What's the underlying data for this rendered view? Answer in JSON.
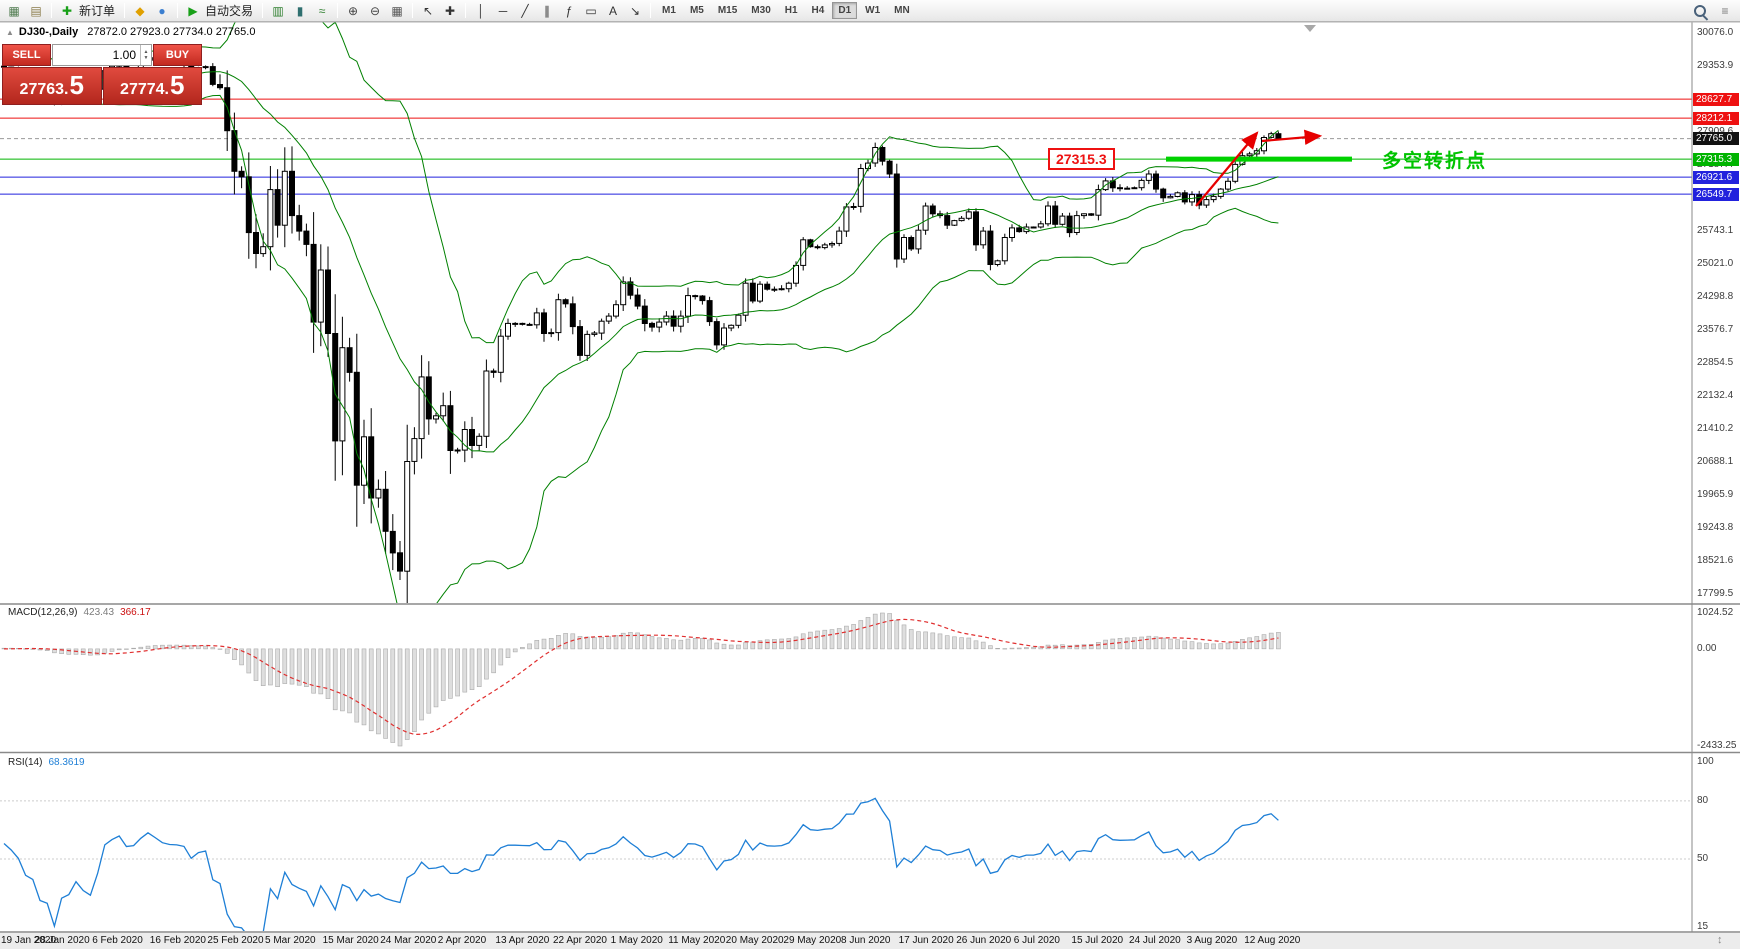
{
  "icons": {
    "collapse": "▲",
    "spin_up": "▲",
    "spin_down": "▼",
    "corner": "↕"
  },
  "toolbar": {
    "groups": [
      [
        {
          "name": "new-chart-icon",
          "glyph": "▦",
          "color": "#4f7b4f"
        },
        {
          "name": "profiles-icon",
          "glyph": "▤",
          "color": "#8a7b4a"
        }
      ],
      [
        {
          "name": "new-order-icon",
          "glyph": "✚",
          "color": "#18a018"
        },
        {
          "name": "new-order-label",
          "label": "新订单"
        }
      ],
      [
        {
          "name": "market-watch-icon",
          "glyph": "◆",
          "color": "#e0a000"
        },
        {
          "name": "data-window-icon",
          "glyph": "●",
          "color": "#3b7fd0"
        }
      ],
      [
        {
          "name": "autotrading-icon",
          "glyph": "▶",
          "color": "#18a018"
        },
        {
          "name": "autotrading-label",
          "label": "自动交易"
        }
      ],
      [
        {
          "name": "bar-chart-icon",
          "glyph": "▥",
          "color": "#2f7f2f"
        },
        {
          "name": "candlestick-chart-icon",
          "glyph": "▮",
          "color": "#2f6f6f"
        },
        {
          "name": "line-chart-icon",
          "glyph": "≈",
          "color": "#2f7f2f"
        }
      ],
      [
        {
          "name": "zoom-in-icon",
          "glyph": "⊕",
          "color": "#444444"
        },
        {
          "name": "zoom-out-icon",
          "glyph": "⊖",
          "color": "#444444"
        },
        {
          "name": "tile-windows-icon",
          "glyph": "▦",
          "color": "#555555"
        }
      ],
      [
        {
          "name": "cursor-icon",
          "glyph": "↖",
          "color": "#333333"
        },
        {
          "name": "crosshair-icon",
          "glyph": "✚",
          "color": "#333333"
        }
      ],
      [
        {
          "name": "vertical-line-icon",
          "glyph": "│",
          "color": "#333333"
        },
        {
          "name": "horizontal-line-icon",
          "glyph": "─",
          "color": "#333333"
        },
        {
          "name": "trendline-icon",
          "glyph": "╱",
          "color": "#333333"
        },
        {
          "name": "channel-icon",
          "glyph": "∥",
          "color": "#333333"
        },
        {
          "name": "fibonacci-icon",
          "glyph": "ƒ",
          "color": "#333333"
        },
        {
          "name": "shapes-icon",
          "glyph": "▭",
          "color": "#333333"
        },
        {
          "name": "text-icon",
          "glyph": "A",
          "color": "#333333"
        },
        {
          "name": "arrow-tool-icon",
          "glyph": "↘",
          "color": "#333333"
        }
      ]
    ],
    "timeframes": [
      "M1",
      "M5",
      "M15",
      "M30",
      "H1",
      "H4",
      "D1",
      "W1",
      "MN"
    ],
    "active_timeframe": "D1"
  },
  "title": {
    "symbol": "DJ30-,Daily",
    "ohlc": "27872.0 27923.0 27734.0 27765.0"
  },
  "trade_panel": {
    "sell_label": "SELL",
    "buy_label": "BUY",
    "volume": "1.00",
    "sell_price_main": "27763.",
    "sell_price_big": "5",
    "buy_price_main": "27774.",
    "buy_price_big": "5"
  },
  "annotations": {
    "level_label": "27315.3",
    "turning_text": "多空转折点",
    "thick_line_color": "#00d200",
    "arrow_color": "#e60000"
  },
  "macd": {
    "name": "MACD(12,26,9)",
    "value_main": "423.43",
    "value_signal": "366.17",
    "axis_max": "1024.52",
    "axis_zero": "0.00",
    "axis_min": "-2433.25"
  },
  "rsi": {
    "name": "RSI(14)",
    "value": "68.3619",
    "axis_ticks": [
      "100",
      "80",
      "50",
      "15"
    ]
  },
  "date_axis": [
    "19 Jan 2020",
    "28 Jan 2020",
    "6 Feb 2020",
    "16 Feb 2020",
    "25 Feb 2020",
    "5 Mar 2020",
    "15 Mar 2020",
    "24 Mar 2020",
    "2 Apr 2020",
    "13 Apr 2020",
    "22 Apr 2020",
    "1 May 2020",
    "11 May 2020",
    "20 May 2020",
    "29 May 2020",
    "8 Jun 2020",
    "17 Jun 2020",
    "26 Jun 2020",
    "6 Jul 2020",
    "15 Jul 2020",
    "24 Jul 2020",
    "3 Aug 2020",
    "12 Aug 2020"
  ],
  "chart_data": {
    "type": "candlestick",
    "symbol": "DJ30-",
    "timeframe": "Daily",
    "last_ohlc": {
      "open": 27872.0,
      "high": 27923.0,
      "low": 27734.0,
      "close": 27765.0
    },
    "first_open": 29350,
    "closes": [
      29330,
      29305,
      29270,
      29185,
      29160,
      28990,
      28960,
      28535,
      28722,
      28750,
      28855,
      28720,
      28640,
      28845,
      29250,
      29350,
      29420,
      29285,
      29300,
      29430,
      29535,
      29480,
      29420,
      29400,
      29395,
      29380,
      29250,
      29320,
      29340,
      28950,
      28880,
      27940,
      27050,
      26930,
      25710,
      25250,
      25400,
      26650,
      25870,
      27050,
      26080,
      25740,
      25450,
      23750,
      24890,
      23500,
      21150,
      23190,
      22650,
      20180,
      21240,
      19900,
      20090,
      19170,
      18700,
      18300,
      20700,
      21200,
      22550,
      21630,
      21700,
      21920,
      20940,
      20950,
      21400,
      21050,
      21250,
      22680,
      22650,
      23440,
      23720,
      23720,
      23700,
      23690,
      23950,
      23500,
      23520,
      24240,
      24150,
      23650,
      23020,
      23480,
      23510,
      23770,
      23880,
      24130,
      24630,
      24340,
      24100,
      23720,
      23640,
      23750,
      23880,
      23660,
      23880,
      24330,
      24320,
      24220,
      23760,
      23250,
      23620,
      23680,
      23900,
      24600,
      24210,
      24580,
      24470,
      24460,
      24480,
      24600,
      24990,
      25550,
      25400,
      25380,
      25440,
      25470,
      25740,
      26270,
      26280,
      27110,
      27230,
      27570,
      27270,
      26990,
      25130,
      25600,
      25350,
      25760,
      26290,
      26120,
      26080,
      25870,
      25970,
      26020,
      26160,
      25440,
      25740,
      25010,
      25090,
      25600,
      25810,
      25730,
      25830,
      25830,
      25900,
      26290,
      25890,
      26070,
      25710,
      26080,
      26120,
      26090,
      26650,
      26840,
      26690,
      26670,
      26680,
      26690,
      26850,
      26990,
      26660,
      26470,
      26500,
      26580,
      26380,
      26540,
      26310,
      26430,
      26500,
      26660,
      26830,
      27200,
      27390,
      27430,
      27500,
      27790,
      27872,
      27765
    ],
    "price_axis_ticks": [
      "30076.0",
      "29353.9",
      "28631.7",
      "27909.6",
      "27187.4",
      "26465.3",
      "25743.1",
      "25021.0",
      "24298.8",
      "23576.7",
      "22854.5",
      "22132.4",
      "21410.2",
      "20688.1",
      "19965.9",
      "19243.8",
      "18521.6",
      "17799.5"
    ],
    "hlines": [
      {
        "price": 28627.7,
        "label": "28627.7",
        "color": "#ee1111"
      },
      {
        "price": 28212.1,
        "label": "28212.1",
        "color": "#ee1111"
      },
      {
        "price": 27315.3,
        "label": "27315.3",
        "color": "#00b400"
      },
      {
        "price": 26921.6,
        "label": "26921.6",
        "color": "#2222dd"
      },
      {
        "price": 26549.7,
        "label": "26549.7",
        "color": "#2222dd"
      }
    ],
    "bid": {
      "price": 27765.0,
      "label": "27765.0",
      "color": "#111111"
    },
    "bollinger": {
      "period": 20,
      "deviation": 2,
      "color": "#008000"
    },
    "macd_settings": {
      "fast": 12,
      "slow": 26,
      "signal": 9
    },
    "rsi_settings": {
      "period": 14
    },
    "candle_colors": {
      "bull": "#ffffff",
      "bear": "#000000",
      "outline": "#000000"
    }
  }
}
